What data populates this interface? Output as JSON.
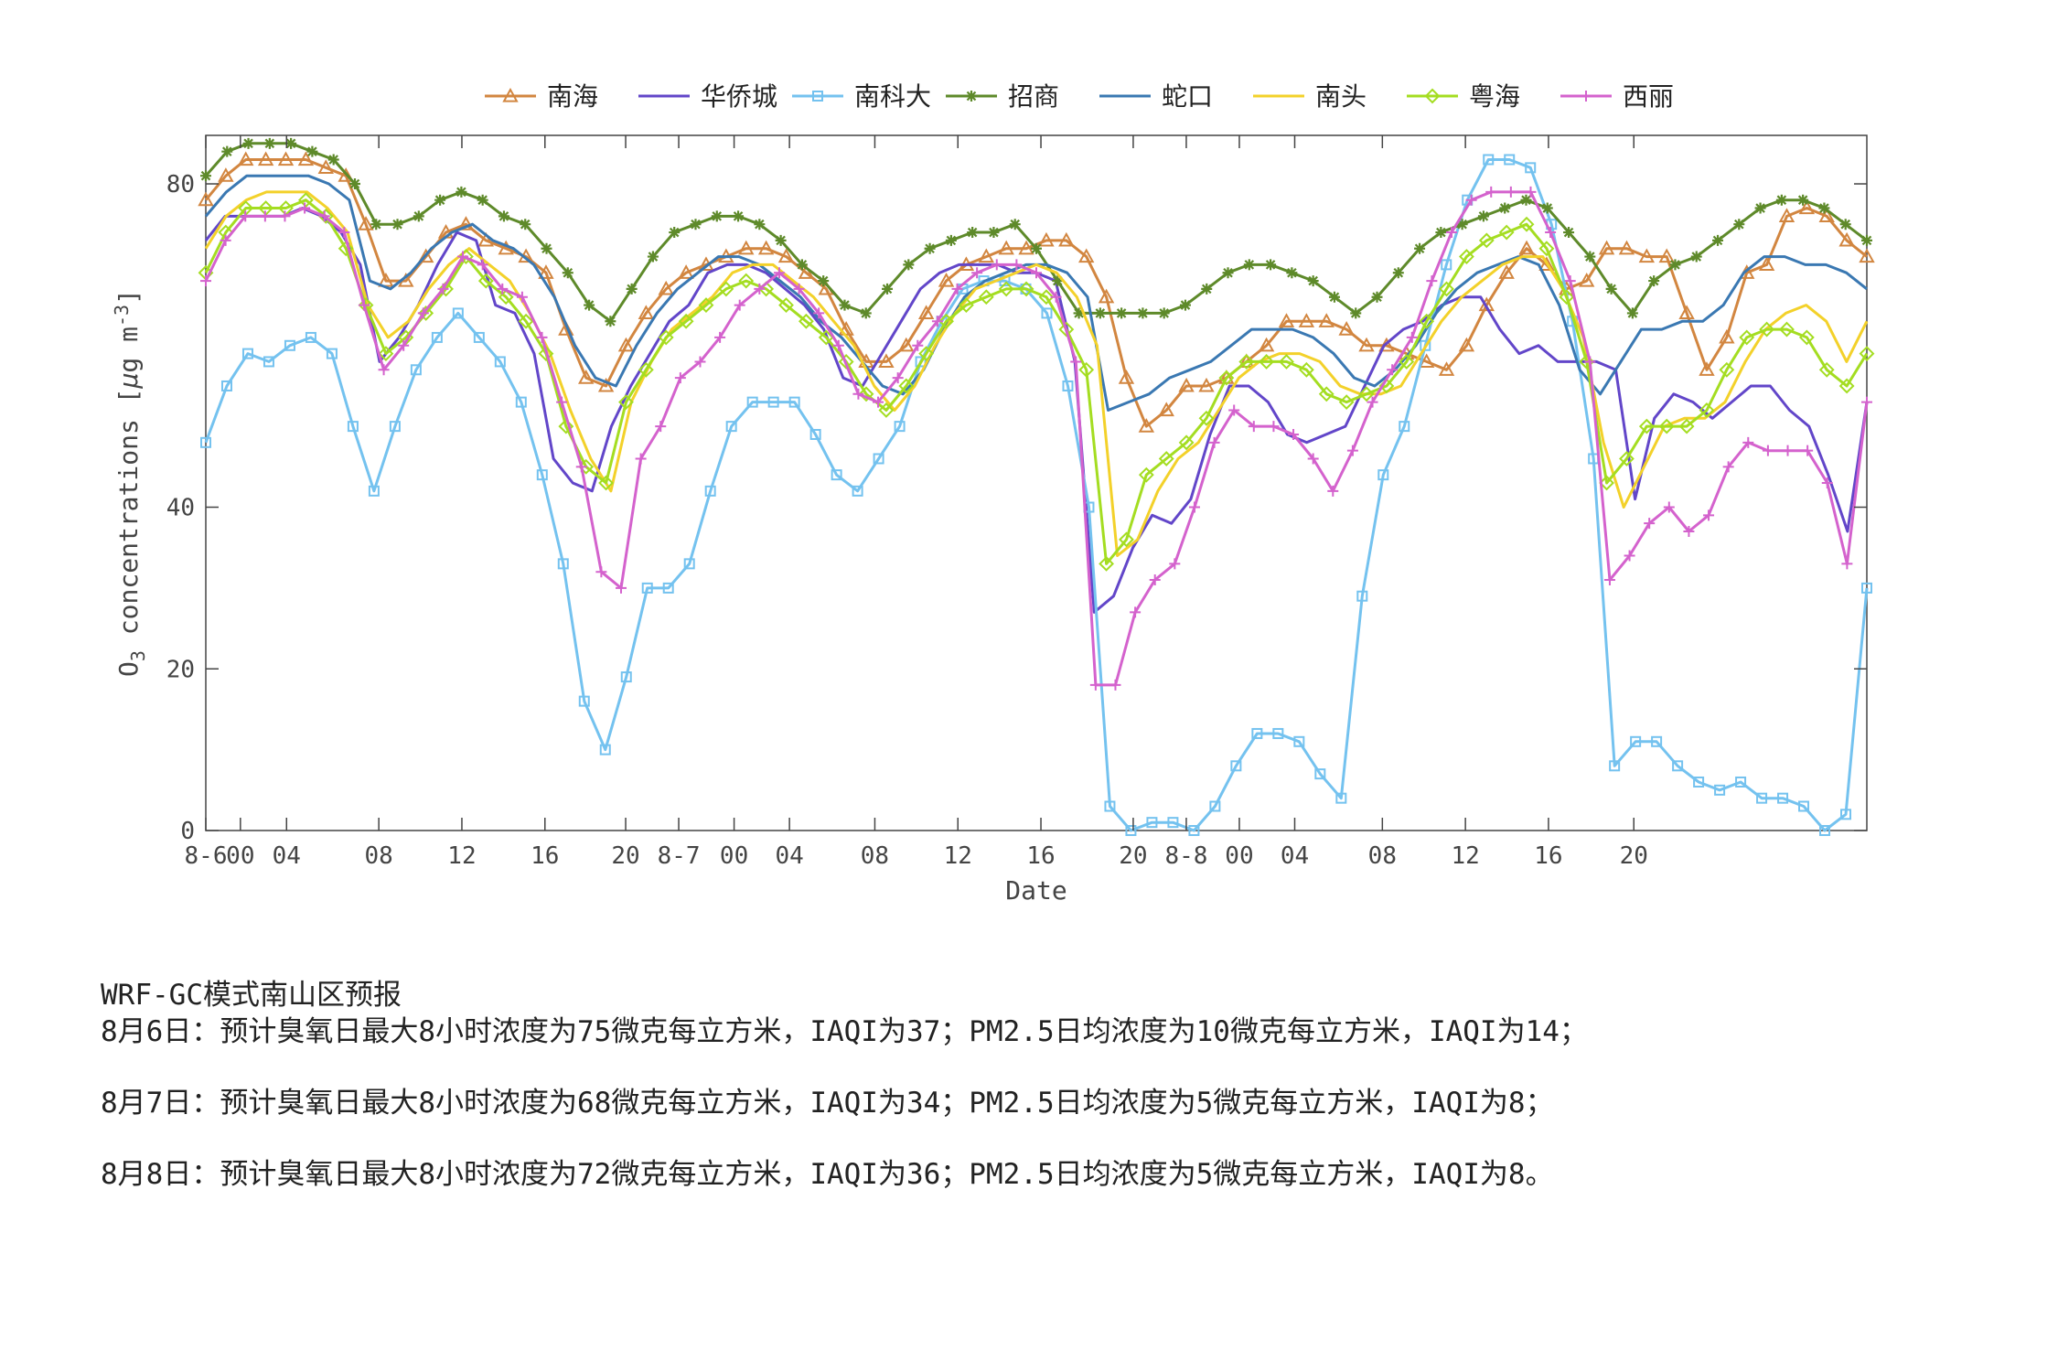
{
  "chart_data": {
    "type": "line",
    "xlabel": "Date",
    "ylabel_base": "O",
    "ylabel_sub": "3",
    "ylabel_rest": " concentrations [",
    "ylabel_unit_mu": "μ",
    "ylabel_unit_g": "g m",
    "ylabel_unit_sup": "-3",
    "ylabel_close": "]",
    "ylim": [
      0,
      86
    ],
    "yticks": [
      0,
      20,
      40,
      80
    ],
    "xlim": [
      0,
      72
    ],
    "xticks": [
      {
        "x": 0,
        "label": "8-6"
      },
      {
        "x": 1.5,
        "label": "00"
      },
      {
        "x": 3.5,
        "label": "04"
      },
      {
        "x": 7.5,
        "label": "08"
      },
      {
        "x": 11.1,
        "label": "12"
      },
      {
        "x": 14.7,
        "label": "16"
      },
      {
        "x": 18.2,
        "label": "20"
      },
      {
        "x": 20.5,
        "label": "8-7"
      },
      {
        "x": 22.9,
        "label": "00"
      },
      {
        "x": 25.3,
        "label": "04"
      },
      {
        "x": 29,
        "label": "08"
      },
      {
        "x": 32.6,
        "label": "12"
      },
      {
        "x": 36.2,
        "label": "16"
      },
      {
        "x": 40.2,
        "label": "20"
      },
      {
        "x": 42.5,
        "label": "8-8"
      },
      {
        "x": 44.8,
        "label": "00"
      },
      {
        "x": 47.2,
        "label": "04"
      },
      {
        "x": 51,
        "label": "08"
      },
      {
        "x": 54.6,
        "label": "12"
      },
      {
        "x": 58.2,
        "label": "16"
      },
      {
        "x": 61.9,
        "label": "20"
      }
    ],
    "grid": false,
    "legend_position": "top",
    "series": [
      {
        "name": "南海",
        "color": "#d28640",
        "marker": "triangle",
        "values": [
          78,
          81,
          83,
          83,
          83,
          83,
          82,
          81,
          75,
          68,
          68,
          71,
          74,
          75,
          73,
          72,
          71,
          69,
          62,
          56,
          55,
          60,
          64,
          67,
          69,
          70,
          71,
          72,
          72,
          71,
          69,
          67,
          62,
          58,
          58,
          60,
          64,
          68,
          70,
          71,
          72,
          72,
          73,
          73,
          71,
          66,
          56,
          50,
          52,
          55,
          55,
          56,
          58,
          60,
          63,
          63,
          63,
          62,
          60,
          60,
          59,
          58,
          57,
          60,
          65,
          69,
          72,
          70,
          67,
          68,
          72,
          72,
          71,
          71,
          64,
          57,
          61,
          69,
          70,
          76,
          77,
          76,
          73,
          71
        ]
      },
      {
        "name": "华侨城",
        "color": "#6246c9",
        "marker": "none",
        "values": [
          73,
          76,
          76,
          76,
          76,
          77,
          76,
          74,
          70,
          58,
          61,
          65,
          70,
          74,
          73,
          65,
          64,
          59,
          46,
          43,
          42,
          50,
          55,
          59,
          63,
          65,
          69,
          70,
          70,
          69,
          67,
          65,
          62,
          56,
          55,
          59,
          63,
          67,
          69,
          70,
          70,
          70,
          69,
          69,
          68,
          58,
          27,
          29,
          35,
          39,
          38,
          41,
          49,
          55,
          55,
          53,
          49,
          48,
          49,
          50,
          55,
          60,
          62,
          63,
          65,
          66,
          66,
          62,
          59,
          60,
          58,
          58,
          58,
          57,
          41,
          51,
          54,
          53,
          51,
          53,
          55,
          55,
          52,
          50,
          44,
          37,
          53
        ]
      },
      {
        "name": "南科大",
        "color": "#74c2ef",
        "marker": "square",
        "values": [
          48,
          55,
          59,
          58,
          60,
          61,
          59,
          50,
          42,
          50,
          57,
          61,
          64,
          61,
          58,
          53,
          44,
          33,
          16,
          10,
          19,
          30,
          30,
          33,
          42,
          50,
          53,
          53,
          53,
          49,
          44,
          42,
          46,
          50,
          58,
          63,
          67,
          68,
          68,
          67,
          64,
          55,
          40,
          3,
          0,
          1,
          1,
          0,
          3,
          8,
          12,
          12,
          11,
          7,
          4,
          29,
          44,
          50,
          60,
          70,
          78,
          83,
          83,
          82,
          75,
          63,
          46,
          8,
          11,
          11,
          8,
          6,
          5,
          6,
          4,
          4,
          3,
          0,
          2,
          30
        ]
      },
      {
        "name": "招商",
        "color": "#5e8a2a",
        "marker": "star",
        "values": [
          81,
          84,
          85,
          85,
          85,
          84,
          83,
          80,
          75,
          75,
          76,
          78,
          79,
          78,
          76,
          75,
          72,
          69,
          65,
          63,
          67,
          71,
          74,
          75,
          76,
          76,
          75,
          73,
          70,
          68,
          65,
          64,
          67,
          70,
          72,
          73,
          74,
          74,
          75,
          72,
          68,
          64,
          64,
          64,
          64,
          64,
          65,
          67,
          69,
          70,
          70,
          69,
          68,
          66,
          64,
          66,
          69,
          72,
          74,
          75,
          76,
          77,
          78,
          77,
          74,
          71,
          67,
          64,
          68,
          70,
          71,
          73,
          75,
          77,
          78,
          78,
          77,
          75,
          73
        ]
      },
      {
        "name": "蛇口",
        "color": "#3a78b2",
        "marker": "none",
        "values": [
          76,
          79,
          81,
          81,
          81,
          81,
          80,
          78,
          68,
          67,
          69,
          72,
          74,
          75,
          73,
          72,
          70,
          66,
          60,
          56,
          55,
          60,
          64,
          67,
          69,
          71,
          71,
          70,
          68,
          66,
          63,
          61,
          58,
          55,
          54,
          57,
          62,
          66,
          68,
          69,
          70,
          70,
          69,
          66,
          52,
          53,
          54,
          56,
          57,
          58,
          60,
          62,
          62,
          62,
          61,
          59,
          56,
          55,
          57,
          60,
          64,
          67,
          69,
          70,
          71,
          70,
          65,
          57,
          54,
          58,
          62,
          62,
          63,
          63,
          65,
          69,
          71,
          71,
          70,
          70,
          69,
          67
        ]
      },
      {
        "name": "南头",
        "color": "#f3d12a",
        "marker": "none",
        "values": [
          72,
          76,
          78,
          79,
          79,
          79,
          77,
          74,
          65,
          61,
          63,
          67,
          70,
          72,
          70,
          68,
          64,
          59,
          52,
          46,
          42,
          53,
          58,
          62,
          64,
          66,
          69,
          70,
          70,
          68,
          66,
          63,
          60,
          55,
          52,
          55,
          60,
          64,
          67,
          68,
          69,
          70,
          69,
          66,
          60,
          34,
          36,
          42,
          46,
          48,
          52,
          56,
          58,
          59,
          59,
          58,
          55,
          54,
          54,
          55,
          59,
          63,
          66,
          68,
          70,
          71,
          71,
          67,
          61,
          48,
          40,
          45,
          50,
          51,
          51,
          53,
          58,
          62,
          64,
          65,
          63,
          58,
          63
        ]
      },
      {
        "name": "粤海",
        "color": "#a4dd21",
        "marker": "diamond",
        "values": [
          69,
          74,
          77,
          77,
          77,
          78,
          76,
          72,
          65,
          59,
          61,
          64,
          67,
          71,
          68,
          66,
          63,
          59,
          50,
          45,
          43,
          53,
          57,
          61,
          63,
          65,
          67,
          68,
          67,
          65,
          63,
          61,
          58,
          54,
          52,
          55,
          59,
          63,
          65,
          66,
          67,
          67,
          66,
          62,
          57,
          33,
          36,
          44,
          46,
          48,
          51,
          56,
          58,
          58,
          58,
          57,
          54,
          53,
          54,
          55,
          58,
          63,
          67,
          71,
          73,
          74,
          75,
          72,
          66,
          58,
          43,
          46,
          50,
          50,
          50,
          52,
          57,
          61,
          62,
          62,
          61,
          57,
          55,
          59
        ]
      },
      {
        "name": "西丽",
        "color": "#d462cd",
        "marker": "plus",
        "values": [
          68,
          73,
          76,
          76,
          76,
          77,
          76,
          74,
          65,
          57,
          60,
          64,
          67,
          71,
          70,
          67,
          66,
          61,
          53,
          45,
          32,
          30,
          46,
          50,
          56,
          58,
          61,
          65,
          67,
          69,
          67,
          64,
          60,
          54,
          53,
          56,
          60,
          63,
          67,
          69,
          70,
          70,
          69,
          66,
          58,
          18,
          18,
          27,
          31,
          33,
          40,
          48,
          52,
          50,
          50,
          49,
          46,
          42,
          47,
          53,
          57,
          61,
          68,
          74,
          78,
          79,
          79,
          79,
          74,
          68,
          58,
          31,
          34,
          38,
          40,
          37,
          39,
          45,
          48,
          47,
          47,
          47,
          43,
          33,
          53
        ]
      }
    ]
  },
  "notes": {
    "title": "WRF-GC模式南山区预报",
    "lines": [
      "8月6日：预计臭氧日最大8小时浓度为75微克每立方米，IAQI为37；PM2.5日均浓度为10微克每立方米，IAQI为14；",
      "8月7日：预计臭氧日最大8小时浓度为68微克每立方米，IAQI为34；PM2.5日均浓度为5微克每立方米，IAQI为8；",
      "8月8日：预计臭氧日最大8小时浓度为72微克每立方米，IAQI为36；PM2.5日均浓度为5微克每立方米，IAQI为8。"
    ]
  }
}
